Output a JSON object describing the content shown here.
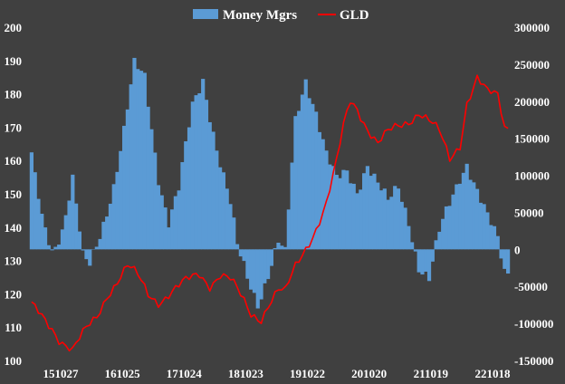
{
  "chart_data": {
    "type": "bar+line",
    "colors": {
      "background": "#404040",
      "bars": "#5b9bd5",
      "line": "#ff0000",
      "text": "#ffffff"
    },
    "legend": {
      "placement": "top-center",
      "entries": [
        "Money Mgrs",
        "GLD"
      ]
    },
    "x_tick_labels": [
      "151027",
      "161025",
      "171024",
      "181023",
      "191022",
      "201020",
      "211019",
      "221018"
    ],
    "left_axis": {
      "min": 100,
      "max": 200,
      "ticks": [
        "100",
        "110",
        "120",
        "130",
        "140",
        "150",
        "160",
        "170",
        "180",
        "190",
        "200"
      ]
    },
    "right_axis": {
      "min": -150000,
      "max": 300000,
      "ticks": [
        "-150000",
        "-100000",
        "-50000",
        "0",
        "50000",
        "100000",
        "150000",
        "200000",
        "250000",
        "300000"
      ]
    },
    "grid": false,
    "series": [
      {
        "name": "Money Mgrs",
        "axis": "right",
        "style": "bar",
        "anchors": [
          [
            0,
            120000
          ],
          [
            3,
            40000
          ],
          [
            6,
            0
          ],
          [
            9,
            30000
          ],
          [
            12,
            95000
          ],
          [
            15,
            -15000
          ],
          [
            17,
            -25000
          ],
          [
            20,
            20000
          ],
          [
            24,
            90000
          ],
          [
            27,
            160000
          ],
          [
            30,
            245000
          ],
          [
            33,
            230000
          ],
          [
            37,
            100000
          ],
          [
            40,
            40000
          ],
          [
            43,
            80000
          ],
          [
            47,
            190000
          ],
          [
            50,
            230000
          ],
          [
            54,
            140000
          ],
          [
            58,
            60000
          ],
          [
            60,
            0
          ],
          [
            63,
            -40000
          ],
          [
            66,
            -70000
          ],
          [
            69,
            -30000
          ],
          [
            72,
            10000
          ],
          [
            74,
            -10000
          ],
          [
            77,
            170000
          ],
          [
            80,
            230000
          ],
          [
            83,
            190000
          ],
          [
            86,
            130000
          ],
          [
            89,
            90000
          ],
          [
            92,
            100000
          ],
          [
            95,
            80000
          ],
          [
            98,
            120000
          ],
          [
            101,
            90000
          ],
          [
            104,
            60000
          ],
          [
            107,
            80000
          ],
          [
            110,
            40000
          ],
          [
            113,
            -20000
          ],
          [
            116,
            -40000
          ],
          [
            119,
            20000
          ],
          [
            122,
            60000
          ],
          [
            125,
            100000
          ],
          [
            127,
            120000
          ],
          [
            130,
            80000
          ],
          [
            133,
            40000
          ],
          [
            136,
            10000
          ],
          [
            138,
            -30000
          ]
        ]
      },
      {
        "name": "GLD",
        "axis": "left",
        "style": "line",
        "anchors": [
          [
            0,
            116
          ],
          [
            3,
            113
          ],
          [
            6,
            110
          ],
          [
            8,
            107
          ],
          [
            10,
            105
          ],
          [
            12,
            103
          ],
          [
            14,
            106
          ],
          [
            16,
            109
          ],
          [
            19,
            113
          ],
          [
            22,
            120
          ],
          [
            25,
            124
          ],
          [
            28,
            128
          ],
          [
            31,
            125
          ],
          [
            34,
            120
          ],
          [
            37,
            118
          ],
          [
            40,
            120
          ],
          [
            43,
            122
          ],
          [
            46,
            124
          ],
          [
            49,
            126
          ],
          [
            52,
            123
          ],
          [
            55,
            126
          ],
          [
            58,
            124
          ],
          [
            61,
            119
          ],
          [
            64,
            114
          ],
          [
            67,
            113
          ],
          [
            69,
            117
          ],
          [
            72,
            121
          ],
          [
            74,
            120
          ],
          [
            77,
            128
          ],
          [
            80,
            134
          ],
          [
            83,
            140
          ],
          [
            86,
            147
          ],
          [
            89,
            159
          ],
          [
            91,
            170
          ],
          [
            93,
            178
          ],
          [
            95,
            176
          ],
          [
            98,
            170
          ],
          [
            101,
            165
          ],
          [
            104,
            168
          ],
          [
            107,
            170
          ],
          [
            110,
            172
          ],
          [
            113,
            175
          ],
          [
            116,
            172
          ],
          [
            119,
            168
          ],
          [
            122,
            160
          ],
          [
            125,
            165
          ],
          [
            127,
            178
          ],
          [
            130,
            185
          ],
          [
            133,
            180
          ],
          [
            136,
            179
          ],
          [
            138,
            170
          ]
        ]
      }
    ]
  }
}
